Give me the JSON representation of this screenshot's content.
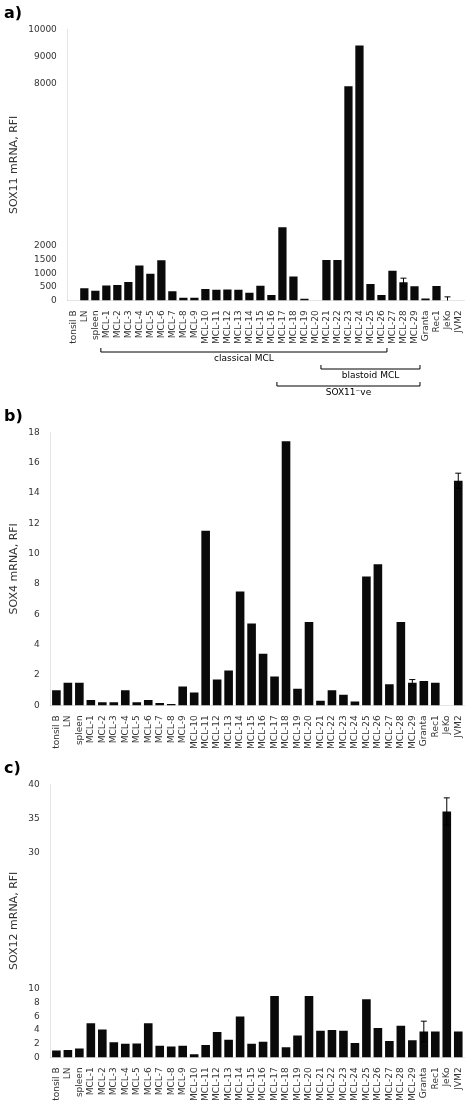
{
  "chart_data": [
    {
      "type": "bar",
      "title": "a)",
      "y_label": "SOX11 mRNA, RFI",
      "categories": [
        "tonsil B",
        "LN",
        "spleen",
        "MCL-1",
        "MCL-2",
        "MCL-3",
        "MCL-4",
        "MCL-5",
        "MCL-6",
        "MCL-7",
        "MCL-8",
        "MCL-9",
        "MCL-10",
        "MCL-11",
        "MCL-12",
        "MCL-13",
        "MCL-14",
        "MCL-15",
        "MCL-16",
        "MCL-17",
        "MCL-18",
        "MCL-19",
        "MCL-20",
        "MCL-21",
        "MCL-22",
        "MCL-23",
        "MCL-24",
        "MCL-25",
        "MCL-26",
        "MCL-27",
        "MCL-28",
        "MCL-29",
        "Granta",
        "Rec1",
        "JeKo",
        "JVM2"
      ],
      "values": [
        0,
        450,
        360,
        550,
        570,
        680,
        1290,
        980,
        1480,
        340,
        100,
        100,
        420,
        390,
        400,
        390,
        280,
        540,
        200,
        2700,
        880,
        60,
        0,
        1490,
        1490,
        7900,
        9400,
        600,
        200,
        1090,
        670,
        520,
        70,
        530,
        0,
        0
      ],
      "errors": [
        0,
        0,
        0,
        0,
        0,
        0,
        0,
        0,
        0,
        0,
        0,
        0,
        0,
        0,
        0,
        0,
        0,
        0,
        0,
        0,
        0,
        0,
        0,
        0,
        0,
        0,
        0,
        0,
        0,
        0,
        150,
        0,
        0,
        0,
        130,
        0
      ],
      "color": "#0a0a0a",
      "ylim": [
        0,
        10000
      ],
      "yticks": [
        0,
        500,
        1000,
        1500,
        2000,
        8000,
        9000,
        10000
      ],
      "grid": false,
      "annotations": [
        {
          "text": "classical MCL",
          "from": "MCL-1",
          "to": "MCL-26"
        },
        {
          "text": "blastoid MCL",
          "from": "MCL-21",
          "to": "MCL-29"
        },
        {
          "text": "SOX11⁻ve",
          "from": "MCL-17",
          "to": "MCL-29"
        }
      ]
    },
    {
      "type": "bar",
      "title": "b)",
      "y_label": "SOX4 mRNA, RFI",
      "categories": [
        "tonsil B",
        "LN",
        "spleen",
        "MCL-1",
        "MCL-2",
        "MCL-3",
        "MCL-4",
        "MCL-5",
        "MCL-6",
        "MCL-7",
        "MCL-8",
        "MCL-9",
        "MCL-10",
        "MCL-11",
        "MCL-12",
        "MCL-13",
        "MCL-14",
        "MCL-15",
        "MCL-16",
        "MCL-17",
        "MCL-18",
        "MCL-19",
        "MCL-20",
        "MCL-21",
        "MCL-22",
        "MCL-23",
        "MCL-24",
        "MCL-25",
        "MCL-26",
        "MCL-27",
        "MCL-28",
        "MCL-29",
        "Granta",
        "Rec1",
        "JeKo",
        "JVM2"
      ],
      "values": [
        1.0,
        1.5,
        1.5,
        0.35,
        0.2,
        0.2,
        1.0,
        0.2,
        0.35,
        0.15,
        0.1,
        1.25,
        0.85,
        11.5,
        1.7,
        2.3,
        7.5,
        5.4,
        3.4,
        1.9,
        17.4,
        1.1,
        5.5,
        0.3,
        1.0,
        0.7,
        0.25,
        8.5,
        9.3,
        1.4,
        5.5,
        1.5,
        1.6,
        1.5,
        0.0,
        14.8
      ],
      "errors": [
        0,
        0,
        0,
        0,
        0,
        0,
        0,
        0,
        0,
        0,
        0,
        0,
        0,
        0,
        0,
        0,
        0,
        0,
        0,
        0,
        0,
        0,
        0,
        0,
        0,
        0,
        0,
        0,
        0,
        0,
        0,
        0.2,
        0,
        0,
        0,
        0.5
      ],
      "color": "#0a0a0a",
      "ylim": [
        0,
        18
      ],
      "yticks": [
        0,
        2,
        4,
        6,
        8,
        10,
        12,
        14,
        16,
        18
      ],
      "grid": false
    },
    {
      "type": "bar",
      "title": "c)",
      "y_label": "SOX12 mRNA, RFI",
      "categories": [
        "tonsil B",
        "LN",
        "spleen",
        "MCL-1",
        "MCL-2",
        "MCL-3",
        "MCL-4",
        "MCL-5",
        "MCL-6",
        "MCL-7",
        "MCL-8",
        "MCL-9",
        "MCL-10",
        "MCL-11",
        "MCL-12",
        "MCL-13",
        "MCL-14",
        "MCL-15",
        "MCL-16",
        "MCL-17",
        "MCL-18",
        "MCL-19",
        "MCL-20",
        "MCL-21",
        "MCL-22",
        "MCL-23",
        "MCL-24",
        "MCL-25",
        "MCL-26",
        "MCL-27",
        "MCL-28",
        "MCL-29",
        "Granta",
        "Rec1",
        "JeKo",
        "JVM2"
      ],
      "values": [
        1.0,
        1.1,
        1.3,
        5.0,
        4.1,
        2.2,
        2.0,
        2.05,
        5.0,
        1.7,
        1.6,
        1.7,
        0.45,
        1.8,
        3.7,
        2.6,
        6.0,
        2.0,
        2.3,
        9.0,
        1.5,
        3.2,
        9.0,
        3.9,
        4.0,
        3.9,
        2.1,
        8.5,
        4.3,
        2.4,
        4.65,
        2.5,
        3.8,
        3.8,
        36.0,
        3.8
      ],
      "errors": [
        0,
        0,
        0,
        0,
        0,
        0,
        0,
        0,
        0,
        0,
        0,
        0,
        0,
        0,
        0,
        0,
        0,
        0,
        0,
        0,
        0,
        0,
        0,
        0,
        0,
        0,
        0,
        0,
        0,
        0,
        0,
        0,
        1.5,
        0,
        2.0,
        0
      ],
      "color": "#0a0a0a",
      "ylim": [
        0,
        40
      ],
      "yticks": [
        0,
        2,
        4,
        6,
        8,
        10,
        30,
        35,
        40
      ],
      "grid": false
    }
  ]
}
